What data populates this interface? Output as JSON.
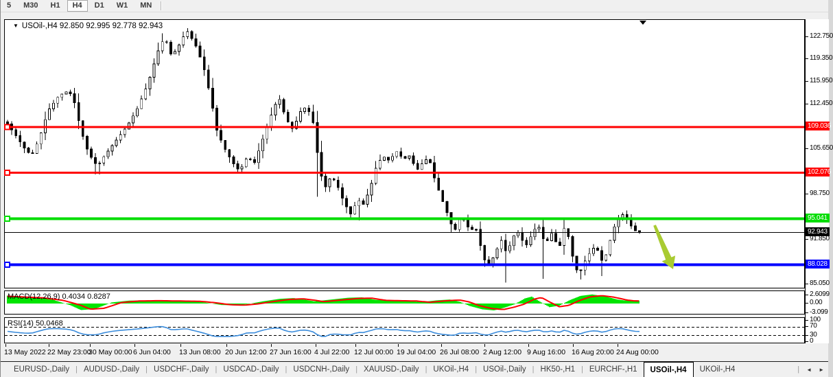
{
  "toolbar": {
    "timeframes": [
      "5",
      "M30",
      "H1",
      "H4",
      "D1",
      "W1",
      "MN"
    ],
    "active": "H4",
    "active_index": 3
  },
  "chart": {
    "title_text": "USOil-,H4  92.850 92.995 92.778 92.943",
    "symbol": "USOil-,H4",
    "quote": {
      "open": "92.850",
      "high": "92.995",
      "low": "92.778",
      "close": "92.943"
    },
    "down_triangle": "▼"
  },
  "macd": {
    "label": "MACD(12,26,9) 0.4034 0.8287",
    "main_value": "0.4034",
    "signal_value": "0.8287",
    "scale": [
      "2.6099",
      "0.00",
      "-3.099"
    ],
    "scale_values": [
      2.6099,
      0.0,
      -3.099
    ]
  },
  "rsi": {
    "label": "RSI(14) 50.0468",
    "value": "50.0468",
    "scale": [
      "100",
      "70",
      "30",
      "0"
    ],
    "scale_values": [
      100,
      70,
      30,
      0
    ],
    "levels": [
      70,
      30
    ]
  },
  "tabs": {
    "items": [
      "EURUSD-,Daily",
      "AUDUSD-,Daily",
      "USDCHF-,Daily",
      "USDCAD-,Daily",
      "USDCNH-,Daily",
      "XAUUSD-,Daily",
      "UKOil-,H4",
      "USOil-,Daily",
      "HK50-,H1",
      "EURCHF-,H1",
      "USOil-,H4",
      "UKOil-,H4"
    ],
    "active_index": 10,
    "scroll_left_glyph": "◄",
    "scroll_right_glyph": "►"
  },
  "chart_data": {
    "type": "candlestick",
    "symbol": "USOil-",
    "timeframe": "H4",
    "ylim": [
      84.4,
      125.3
    ],
    "y_axis_ticks": [
      122.75,
      119.35,
      115.95,
      112.45,
      105.65,
      98.75,
      91.85,
      85.05
    ],
    "horizontal_lines": [
      {
        "name": "resistance-1",
        "price": 109.036,
        "label": "109.036",
        "color": "#ff0000",
        "width": 3,
        "handle": true,
        "text_color": "#ffffff"
      },
      {
        "name": "resistance-2",
        "price": 102.076,
        "label": "102.076",
        "color": "#ff0000",
        "width": 3,
        "handle": true,
        "text_color": "#ffffff"
      },
      {
        "name": "support-green",
        "price": 95.041,
        "label": "95.041",
        "color": "#00dd00",
        "width": 4,
        "handle": true,
        "text_color": "#ffffff"
      },
      {
        "name": "bid-price",
        "price": 92.943,
        "label": "92.943",
        "color": "#000000",
        "width": 1,
        "handle": false,
        "text_color": "#ffffff"
      },
      {
        "name": "support-blue",
        "price": 88.028,
        "label": "88.028",
        "color": "#0000ff",
        "width": 4,
        "handle": true,
        "text_color": "#ffffff"
      }
    ],
    "price_path": [
      [
        9,
        109.5
      ],
      [
        20,
        107.9
      ],
      [
        32,
        106.0
      ],
      [
        44,
        104.6
      ],
      [
        55,
        107.2
      ],
      [
        68,
        111.5
      ],
      [
        84,
        113.8
      ],
      [
        98,
        114.6
      ],
      [
        106,
        113.0
      ],
      [
        116,
        108.5
      ],
      [
        127,
        105.0
      ],
      [
        140,
        103.0
      ],
      [
        150,
        104.6
      ],
      [
        166,
        106.8
      ],
      [
        184,
        109.3
      ],
      [
        198,
        111.8
      ],
      [
        213,
        115.5
      ],
      [
        228,
        120.5
      ],
      [
        238,
        122.8
      ],
      [
        248,
        119.8
      ],
      [
        258,
        121.3
      ],
      [
        270,
        123.8
      ],
      [
        283,
        121.5
      ],
      [
        294,
        118.5
      ],
      [
        305,
        113.5
      ],
      [
        314,
        108.5
      ],
      [
        325,
        105.8
      ],
      [
        337,
        103.6
      ],
      [
        347,
        102.3
      ],
      [
        358,
        104.4
      ],
      [
        369,
        103.6
      ],
      [
        381,
        107.2
      ],
      [
        393,
        110.8
      ],
      [
        404,
        113.7
      ],
      [
        415,
        110.2
      ],
      [
        425,
        108.6
      ],
      [
        435,
        111.3
      ],
      [
        445,
        112.2
      ],
      [
        455,
        109.5
      ],
      [
        463,
        103.0
      ],
      [
        471,
        99.6
      ],
      [
        481,
        101.6
      ],
      [
        490,
        100.0
      ],
      [
        499,
        97.6
      ],
      [
        510,
        95.6
      ],
      [
        519,
        98.0
      ],
      [
        528,
        97.2
      ],
      [
        538,
        99.8
      ],
      [
        547,
        103.2
      ],
      [
        556,
        104.6
      ],
      [
        565,
        103.9
      ],
      [
        576,
        105.3
      ],
      [
        586,
        104.1
      ],
      [
        596,
        104.7
      ],
      [
        605,
        102.3
      ],
      [
        614,
        103.6
      ],
      [
        623,
        104.4
      ],
      [
        630,
        101.6
      ],
      [
        639,
        98.8
      ],
      [
        648,
        96.4
      ],
      [
        655,
        94.3
      ],
      [
        663,
        93.2
      ],
      [
        669,
        95.4
      ],
      [
        677,
        94.4
      ],
      [
        683,
        93.1
      ],
      [
        691,
        93.9
      ],
      [
        697,
        91.4
      ],
      [
        704,
        88.8
      ],
      [
        711,
        87.8
      ],
      [
        718,
        89.4
      ],
      [
        725,
        91.0
      ],
      [
        731,
        92.2
      ],
      [
        736,
        89.5
      ],
      [
        739,
        90.4
      ],
      [
        746,
        92.3
      ],
      [
        752,
        93.2
      ],
      [
        758,
        92.0
      ],
      [
        764,
        90.8
      ],
      [
        770,
        92.0
      ],
      [
        776,
        93.2
      ],
      [
        782,
        94.2
      ],
      [
        788,
        92.5
      ],
      [
        793,
        91.0
      ],
      [
        798,
        92.2
      ],
      [
        803,
        93.0
      ],
      [
        808,
        91.5
      ],
      [
        813,
        90.5
      ],
      [
        818,
        92.5
      ],
      [
        822,
        94.4
      ],
      [
        827,
        92.0
      ],
      [
        832,
        89.5
      ],
      [
        837,
        87.5
      ],
      [
        842,
        86.6
      ],
      [
        848,
        88.0
      ],
      [
        854,
        89.3
      ],
      [
        860,
        90.2
      ],
      [
        866,
        90.9
      ],
      [
        872,
        89.5
      ],
      [
        877,
        88.2
      ],
      [
        882,
        89.8
      ],
      [
        888,
        92.0
      ],
      [
        894,
        94.0
      ],
      [
        900,
        95.2
      ],
      [
        906,
        95.7
      ],
      [
        912,
        94.9
      ],
      [
        918,
        93.9
      ],
      [
        924,
        93.2
      ],
      [
        930,
        92.943
      ]
    ],
    "wick_lows": [
      [
        737,
        85.3
      ],
      [
        790,
        85.9
      ],
      [
        843,
        85.8
      ],
      [
        878,
        86.3
      ],
      [
        463,
        98.4
      ],
      [
        520,
        94.8
      ],
      [
        140,
        101.8
      ]
    ],
    "wick_highs": [
      [
        270,
        124.1
      ],
      [
        232,
        123.3
      ],
      [
        906,
        96.0
      ]
    ],
    "last_bar_x": 930,
    "current_bar_marker_x": 935,
    "arrow_annotation": {
      "from": [
        952,
        327
      ],
      "to": [
        979,
        391
      ],
      "color": "#a9cb32"
    },
    "macd_signal_path": [
      [
        9,
        2.3
      ],
      [
        60,
        1.8
      ],
      [
        90,
        1.0
      ],
      [
        115,
        -0.5
      ],
      [
        130,
        -1.8
      ],
      [
        150,
        -1.5
      ],
      [
        175,
        0.3
      ],
      [
        200,
        0.8
      ],
      [
        230,
        0.9
      ],
      [
        290,
        0.7
      ],
      [
        310,
        0.3
      ],
      [
        335,
        -0.4
      ],
      [
        355,
        -0.5
      ],
      [
        375,
        -0.1
      ],
      [
        395,
        0.6
      ],
      [
        420,
        1.3
      ],
      [
        440,
        1.5
      ],
      [
        455,
        1.1
      ],
      [
        470,
        0.6
      ],
      [
        495,
        1.1
      ],
      [
        520,
        1.6
      ],
      [
        540,
        1.7
      ],
      [
        560,
        1.0
      ],
      [
        580,
        0.9
      ],
      [
        605,
        0.8
      ],
      [
        625,
        0.4
      ],
      [
        650,
        0.9
      ],
      [
        668,
        1.1
      ],
      [
        682,
        0.5
      ],
      [
        697,
        -0.7
      ],
      [
        715,
        -1.6
      ],
      [
        732,
        -1.9
      ],
      [
        748,
        -1.1
      ],
      [
        762,
        -0.2
      ],
      [
        777,
        1.4
      ],
      [
        787,
        1.9
      ],
      [
        800,
        0.4
      ],
      [
        813,
        -1.0
      ],
      [
        827,
        -0.6
      ],
      [
        842,
        0.9
      ],
      [
        858,
        2.1
      ],
      [
        875,
        2.5
      ],
      [
        893,
        2.0
      ],
      [
        912,
        1.1
      ],
      [
        922,
        0.85
      ],
      [
        930,
        0.83
      ]
    ],
    "macd_range": [
      2.6099,
      -3.099
    ],
    "rsi_range": [
      0,
      100
    ],
    "x_axis_labels": [
      {
        "label": "13 May 2022",
        "x": 5
      },
      {
        "label": "22 May 23:00",
        "x": 68
      },
      {
        "label": "30 May 00:00",
        "x": 128
      },
      {
        "label": "6 Jun 04:00",
        "x": 193
      },
      {
        "label": "13 Jun 08:00",
        "x": 260
      },
      {
        "label": "20 Jun 12:00",
        "x": 327
      },
      {
        "label": "27 Jun 16:00",
        "x": 392
      },
      {
        "label": "4 Jul 22:00",
        "x": 457
      },
      {
        "label": "12 Jul 00:00",
        "x": 515
      },
      {
        "label": "19 Jul 04:00",
        "x": 577
      },
      {
        "label": "26 Jul 08:00",
        "x": 640
      },
      {
        "label": "2 Aug 12:00",
        "x": 703
      },
      {
        "label": "9 Aug 16:00",
        "x": 767
      },
      {
        "label": "16 Aug 20:00",
        "x": 832
      },
      {
        "label": "24 Aug 00:00",
        "x": 897
      }
    ],
    "colors": {
      "macd_histogram": "#00e400",
      "macd_signal": "#ff0000",
      "rsi_line": "#3b8cdb",
      "bar_outline": "#000000"
    }
  }
}
